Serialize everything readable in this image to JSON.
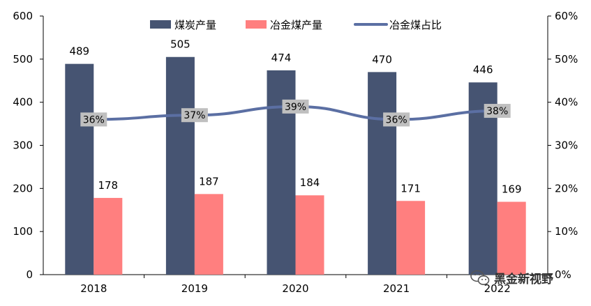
{
  "chart_data": {
    "type": "bar",
    "categories": [
      "2018",
      "2019",
      "2020",
      "2021",
      "2022"
    ],
    "series": [
      {
        "name": "煤炭产量",
        "kind": "bar",
        "axis": "left",
        "color": "#465472",
        "values": [
          489,
          505,
          474,
          470,
          446
        ]
      },
      {
        "name": "冶金煤产量",
        "kind": "bar",
        "axis": "left",
        "color": "#ff7f7f",
        "values": [
          178,
          187,
          184,
          171,
          169
        ]
      },
      {
        "name": "冶金煤占比",
        "kind": "line",
        "axis": "right",
        "color": "#5b6fa3",
        "values": [
          36,
          37,
          39,
          36,
          38
        ],
        "labels": [
          "36%",
          "37%",
          "39%",
          "36%",
          "38%"
        ]
      }
    ],
    "y_left": {
      "min": 0,
      "max": 600,
      "ticks": [
        "0",
        "100",
        "200",
        "300",
        "400",
        "500",
        "600"
      ]
    },
    "y_right": {
      "min": 0,
      "max": 60,
      "ticks": [
        "0%",
        "10%",
        "20%",
        "30%",
        "40%",
        "50%",
        "60%"
      ]
    },
    "legend_position": "top",
    "grid": false
  },
  "watermark": {
    "text": "黑金新视野",
    "icon": "wechat-icon"
  }
}
